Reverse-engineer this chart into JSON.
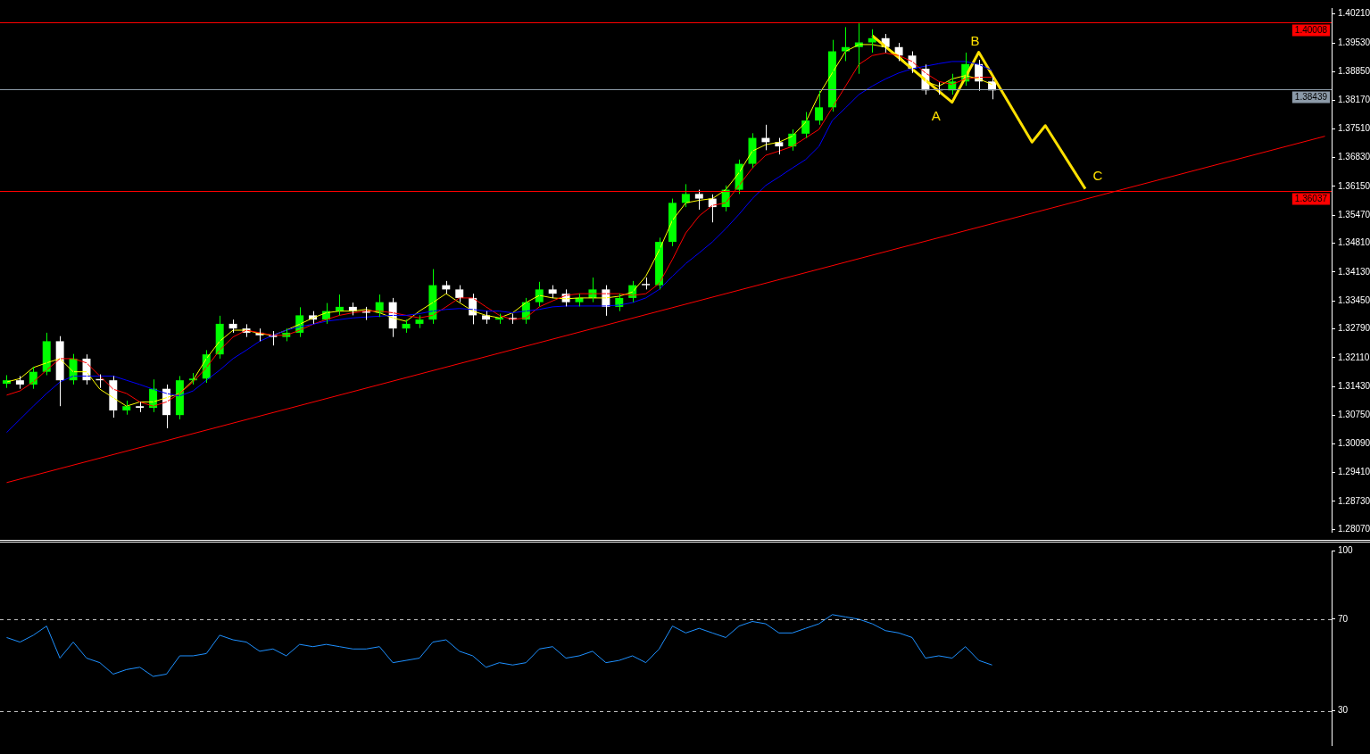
{
  "chart_data": [
    {
      "type": "candlestick",
      "tick_labels": "y",
      "colors": [
        "#00ff00",
        "#ffffff",
        "#00ff00",
        "#00ff00",
        "#ffffff",
        "#00ff00",
        "#ffffff",
        "#ffffff",
        "#ffffff",
        "#00ff00",
        "#ffffff",
        "#00ff00",
        "#ffffff",
        "#00ff00",
        "#00ff00",
        "#00ff00",
        "#00ff00",
        "#ffffff",
        "#ffffff",
        "#ffffff",
        "#ffffff",
        "#00ff00",
        "#00ff00",
        "#ffffff",
        "#00ff00",
        "#00ff00",
        "#ffffff",
        "#ffffff",
        "#00ff00",
        "#ffffff",
        "#00ff00",
        "#00ff00",
        "#00ff00",
        "#ffffff",
        "#ffffff",
        "#ffffff",
        "#ffffff",
        "#00ff00",
        "#ffffff",
        "#00ff00",
        "#00ff00",
        "#ffffff",
        "#ffffff",
        "#00ff00",
        "#00ff00",
        "#ffffff",
        "#00ff00",
        "#00ff00",
        "#ffffff",
        "#00ff00",
        "#00ff00",
        "#00ff00",
        "#ffffff",
        "#ffffff",
        "#00ff00",
        "#00ff00",
        "#00ff00",
        "#ffffff",
        "#ffffff",
        "#00ff00",
        "#00ff00",
        "#00ff00",
        "#00ff00",
        "#00ff00",
        "#00ff00",
        "#00ff00",
        "#ffffff",
        "#ffffff",
        "#ffffff",
        "#ffffff",
        "#ffffff",
        "#00ff00",
        "#00ff00",
        "#ffffff",
        "#ffffff",
        null,
        null,
        null,
        null,
        null,
        null,
        null,
        null,
        null,
        null,
        null,
        null,
        null,
        null,
        null,
        null,
        null,
        null,
        null,
        null,
        null,
        null,
        null,
        null,
        null
      ],
      "categories": [
        null,
        null,
        null,
        null,
        null,
        null,
        null,
        null,
        null,
        null,
        null,
        null,
        null,
        null,
        null,
        null,
        null,
        null,
        null,
        null,
        null,
        null,
        null,
        null,
        null,
        null,
        null,
        null,
        null,
        null,
        null,
        null,
        null,
        null,
        null,
        null,
        null,
        null,
        null,
        null,
        null,
        null,
        null,
        null,
        null,
        null,
        null,
        null,
        null,
        null,
        null,
        null,
        null,
        null,
        null,
        null,
        null,
        null,
        null,
        null,
        null,
        null,
        null,
        null,
        null,
        null,
        null,
        null,
        null,
        null,
        null,
        null,
        null,
        null,
        null,
        null,
        null,
        null,
        null,
        null,
        null,
        null,
        null,
        null,
        null,
        null,
        null,
        null,
        null,
        null,
        null,
        null,
        null,
        null,
        null,
        null,
        null,
        null,
        null,
        null
      ],
      "ohlc": [
        [
          1.315,
          1.317,
          1.314,
          1.3158
        ],
        [
          1.3158,
          1.3168,
          1.3138,
          1.3148
        ],
        [
          1.3148,
          1.319,
          1.3138,
          1.3178
        ],
        [
          1.3178,
          1.327,
          1.317,
          1.325
        ],
        [
          1.325,
          1.3262,
          1.3097,
          1.3158
        ],
        [
          1.3158,
          1.322,
          1.3148,
          1.3209
        ],
        [
          1.3209,
          1.3219,
          1.3148,
          1.3158
        ],
        [
          1.3161,
          1.3172,
          1.314,
          1.3158
        ],
        [
          1.3158,
          1.3168,
          1.307,
          1.3087
        ],
        [
          1.3087,
          1.311,
          1.3077,
          1.3097
        ],
        [
          1.3097,
          1.3107,
          1.3083,
          1.3093
        ],
        [
          1.3093,
          1.316,
          1.3083,
          1.3138
        ],
        [
          1.3138,
          1.3148,
          1.3045,
          1.3076
        ],
        [
          1.3076,
          1.3168,
          1.3066,
          1.3158
        ],
        [
          1.3158,
          1.3175,
          1.3148,
          1.3162
        ],
        [
          1.3162,
          1.3229,
          1.3152,
          1.3219
        ],
        [
          1.3219,
          1.331,
          1.3209,
          1.3291
        ],
        [
          1.3291,
          1.3301,
          1.327,
          1.328
        ],
        [
          1.328,
          1.329,
          1.326,
          1.327
        ],
        [
          1.327,
          1.328,
          1.325,
          1.3264
        ],
        [
          1.3264,
          1.3274,
          1.324,
          1.326
        ],
        [
          1.326,
          1.328,
          1.325,
          1.327
        ],
        [
          1.327,
          1.333,
          1.326,
          1.3311
        ],
        [
          1.3311,
          1.3321,
          1.3291,
          1.3301
        ],
        [
          1.3301,
          1.334,
          1.3291,
          1.3321
        ],
        [
          1.3321,
          1.336,
          1.3311,
          1.3331
        ],
        [
          1.3331,
          1.3341,
          1.3311,
          1.3321
        ],
        [
          1.3321,
          1.3331,
          1.33,
          1.3317
        ],
        [
          1.3317,
          1.336,
          1.3307,
          1.3342
        ],
        [
          1.3342,
          1.3352,
          1.326,
          1.328
        ],
        [
          1.328,
          1.3301,
          1.327,
          1.3291
        ],
        [
          1.3291,
          1.3311,
          1.3281,
          1.3301
        ],
        [
          1.3301,
          1.342,
          1.3291,
          1.3382
        ],
        [
          1.3382,
          1.3392,
          1.3362,
          1.3372
        ],
        [
          1.3372,
          1.3382,
          1.3342,
          1.3352
        ],
        [
          1.3352,
          1.3362,
          1.329,
          1.3311
        ],
        [
          1.3311,
          1.3321,
          1.3291,
          1.3301
        ],
        [
          1.3301,
          1.3315,
          1.3291,
          1.3305
        ],
        [
          1.3305,
          1.3315,
          1.3291,
          1.3301
        ],
        [
          1.3301,
          1.3352,
          1.3291,
          1.3342
        ],
        [
          1.3342,
          1.339,
          1.3332,
          1.3372
        ],
        [
          1.3372,
          1.3382,
          1.3352,
          1.3362
        ],
        [
          1.3362,
          1.3372,
          1.3332,
          1.3342
        ],
        [
          1.3342,
          1.3362,
          1.3332,
          1.3352
        ],
        [
          1.3352,
          1.34,
          1.3342,
          1.3372
        ],
        [
          1.3372,
          1.3382,
          1.331,
          1.3331
        ],
        [
          1.3331,
          1.3362,
          1.3321,
          1.3352
        ],
        [
          1.3352,
          1.3392,
          1.3342,
          1.3382
        ],
        [
          1.3385,
          1.34,
          1.3372,
          1.3382
        ],
        [
          1.3382,
          1.3494,
          1.3372,
          1.3484
        ],
        [
          1.3484,
          1.3586,
          1.3474,
          1.3576
        ],
        [
          1.3576,
          1.362,
          1.3566,
          1.3597
        ],
        [
          1.3597,
          1.3607,
          1.356,
          1.3586
        ],
        [
          1.3586,
          1.3596,
          1.353,
          1.3566
        ],
        [
          1.3566,
          1.3617,
          1.3556,
          1.3607
        ],
        [
          1.3607,
          1.3678,
          1.3597,
          1.3668
        ],
        [
          1.3668,
          1.374,
          1.3658,
          1.3729
        ],
        [
          1.3729,
          1.376,
          1.37,
          1.3719
        ],
        [
          1.3719,
          1.3729,
          1.369,
          1.3709
        ],
        [
          1.3709,
          1.3749,
          1.3699,
          1.3739
        ],
        [
          1.3739,
          1.379,
          1.3729,
          1.377
        ],
        [
          1.377,
          1.384,
          1.376,
          1.3801
        ],
        [
          1.3801,
          1.396,
          1.3791,
          1.3933
        ],
        [
          1.3933,
          1.399,
          1.391,
          1.3943
        ],
        [
          1.3943,
          1.3999,
          1.388,
          1.3954
        ],
        [
          1.3954,
          1.3985,
          1.393,
          1.3964
        ],
        [
          1.3964,
          1.3974,
          1.393,
          1.3943
        ],
        [
          1.3943,
          1.3953,
          1.391,
          1.3923
        ],
        [
          1.3923,
          1.3933,
          1.3882,
          1.3892
        ],
        [
          1.3892,
          1.3902,
          1.3831,
          1.3841
        ],
        [
          1.3844,
          1.386,
          1.3831,
          1.3841
        ],
        [
          1.3841,
          1.388,
          1.3831,
          1.3862
        ],
        [
          1.3862,
          1.393,
          1.3852,
          1.3903
        ],
        [
          1.3903,
          1.3913,
          1.384,
          1.3862
        ],
        [
          1.3862,
          1.3872,
          1.382,
          1.3841
        ],
        null,
        null,
        null,
        null,
        null,
        null,
        null,
        null,
        null,
        null,
        null,
        null,
        null,
        null,
        null,
        null,
        null,
        null,
        null,
        null,
        null,
        null,
        null,
        null,
        null
      ],
      "series": [
        {
          "type": "line",
          "color": "#0000ff",
          "values": [
            1.3035,
            1.3066,
            1.3097,
            1.3127,
            1.3154,
            1.3168,
            1.3168,
            1.3168,
            1.3168,
            1.3158,
            1.3148,
            1.3137,
            1.3127,
            1.3121,
            1.3133,
            1.3158,
            1.3182,
            1.3209,
            1.3229,
            1.325,
            1.3264,
            1.3276,
            1.3284,
            1.329,
            1.3297,
            1.3301,
            1.3305,
            1.3307,
            1.3309,
            1.3311,
            1.3311,
            1.3315,
            1.3321,
            1.3325,
            1.3327,
            1.3325,
            1.3321,
            1.3321,
            1.3317,
            1.3321,
            1.3325,
            1.3331,
            1.3333,
            1.3333,
            1.3333,
            1.3333,
            1.3335,
            1.3341,
            1.3352,
            1.3372,
            1.3403,
            1.3433,
            1.3458,
            1.3484,
            1.3515,
            1.3549,
            1.3586,
            1.3617,
            1.3637,
            1.3658,
            1.3678,
            1.3709,
            1.377,
            1.38,
            1.3831,
            1.3851,
            1.3868,
            1.3882,
            1.3892,
            1.3898,
            1.3904,
            1.3909,
            1.3909,
            1.3902,
            1.3888,
            null,
            null,
            null,
            null,
            null,
            null,
            null,
            null,
            null,
            null,
            null,
            null,
            null,
            null,
            null,
            null,
            null,
            null,
            null,
            null,
            null,
            null,
            null,
            null,
            null
          ]
        },
        {
          "type": "line",
          "color": "#ff0000",
          "values": [
            1.3123,
            1.3133,
            1.3154,
            1.3182,
            1.3209,
            1.3209,
            1.3199,
            1.3168,
            1.3137,
            1.3127,
            1.3107,
            1.3097,
            1.3107,
            1.3127,
            1.3154,
            1.3188,
            1.3229,
            1.326,
            1.3276,
            1.327,
            1.3264,
            1.3264,
            1.3276,
            1.329,
            1.3301,
            1.3311,
            1.3317,
            1.3321,
            1.3321,
            1.3317,
            1.3311,
            1.3305,
            1.3311,
            1.3331,
            1.3352,
            1.3352,
            1.3331,
            1.3311,
            1.3301,
            1.3305,
            1.3331,
            1.3345,
            1.3358,
            1.3362,
            1.3362,
            1.3362,
            1.3362,
            1.3358,
            1.3362,
            1.3386,
            1.3443,
            1.3505,
            1.3545,
            1.357,
            1.3576,
            1.3617,
            1.3658,
            1.3688,
            1.3698,
            1.3709,
            1.3729,
            1.3749,
            1.38,
            1.3851,
            1.3902,
            1.3923,
            1.3929,
            1.3923,
            1.3909,
            1.3882,
            1.3862,
            1.3855,
            1.3868,
            1.3872,
            1.3872,
            null,
            null,
            null,
            null,
            null,
            null,
            null,
            null,
            null,
            null,
            null,
            null,
            null,
            null,
            null,
            null,
            null,
            null,
            null,
            null,
            null,
            null,
            null,
            null,
            null
          ]
        },
        {
          "type": "line",
          "color": "#ffff00",
          "values": [
            1.3154,
            1.3162,
            1.3188,
            1.3199,
            1.3209,
            1.3178,
            1.3178,
            1.3137,
            1.3117,
            1.3097,
            1.3107,
            1.3107,
            1.3117,
            1.3127,
            1.3158,
            1.3209,
            1.325,
            1.3276,
            1.3276,
            1.3268,
            1.3264,
            1.3276,
            1.329,
            1.3305,
            1.3317,
            1.3321,
            1.3321,
            1.3325,
            1.3317,
            1.3305,
            1.3297,
            1.3321,
            1.3341,
            1.3362,
            1.3341,
            1.3321,
            1.3311,
            1.3305,
            1.3317,
            1.3341,
            1.3358,
            1.3352,
            1.335,
            1.3352,
            1.3352,
            1.3352,
            1.3356,
            1.3366,
            1.3403,
            1.3464,
            1.3535,
            1.3576,
            1.3582,
            1.3586,
            1.3607,
            1.3647,
            1.3698,
            1.3713,
            1.3719,
            1.3733,
            1.3766,
            1.3831,
            1.3882,
            1.3933,
            1.3949,
            1.3949,
            1.3943,
            1.3923,
            1.3892,
            1.3862,
            1.3851,
            1.3868,
            1.3876,
            1.3868,
            1.3855,
            null,
            null,
            null,
            null,
            null,
            null,
            null,
            null,
            null,
            null,
            null,
            null,
            null,
            null,
            null,
            null,
            null,
            null,
            null,
            null,
            null,
            null,
            null,
            null,
            null
          ]
        },
        {
          "type": "line",
          "color": "#ff0000",
          "values": [
            1.2917,
            null,
            null,
            null,
            null,
            null,
            null,
            null,
            null,
            null,
            null,
            null,
            null,
            null,
            null,
            null,
            null,
            null,
            null,
            null,
            null,
            null,
            null,
            null,
            null,
            null,
            null,
            null,
            null,
            null,
            null,
            null,
            null,
            null,
            null,
            null,
            null,
            null,
            null,
            null,
            null,
            null,
            null,
            null,
            null,
            null,
            null,
            null,
            null,
            null,
            null,
            null,
            null,
            null,
            null,
            null,
            null,
            null,
            null,
            null,
            null,
            null,
            null,
            null,
            null,
            null,
            null,
            null,
            null,
            null,
            null,
            null,
            null,
            null,
            null,
            null,
            null,
            null,
            null,
            null,
            null,
            null,
            null,
            null,
            null,
            null,
            null,
            null,
            null,
            null,
            null,
            null,
            null,
            null,
            null,
            null,
            null,
            null,
            null,
            1.3733
          ]
        },
        {
          "type": "line",
          "color": "#ffe000",
          "values": [
            null,
            null,
            null,
            null,
            null,
            null,
            null,
            null,
            null,
            null,
            null,
            null,
            null,
            null,
            null,
            null,
            null,
            null,
            null,
            null,
            null,
            null,
            null,
            null,
            null,
            null,
            null,
            null,
            null,
            null,
            null,
            null,
            null,
            null,
            null,
            null,
            null,
            null,
            null,
            null,
            null,
            null,
            null,
            null,
            null,
            null,
            null,
            null,
            null,
            null,
            null,
            null,
            null,
            null,
            null,
            null,
            null,
            null,
            null,
            null,
            null,
            null,
            null,
            null,
            null,
            1.397,
            null,
            null,
            null,
            null,
            null,
            1.3813,
            null,
            1.3931,
            null,
            null,
            null,
            1.3719,
            1.3758,
            null,
            null,
            1.3609,
            null,
            null,
            null,
            null,
            null,
            null,
            null,
            null,
            null,
            null,
            null,
            null,
            null,
            null,
            null,
            null,
            null,
            null
          ]
        }
      ],
      "ylim": [
        1.2801,
        1.4035
      ],
      "yticks": [
        {
          "value": 1.2807,
          "label": "1.28070"
        },
        {
          "value": 1.2873,
          "label": "1.28730"
        },
        {
          "value": 1.2941,
          "label": "1.29410"
        },
        {
          "value": 1.3009,
          "label": "1.30090"
        },
        {
          "value": 1.3075,
          "label": "1.30750"
        },
        {
          "value": 1.3143,
          "label": "1.31430"
        },
        {
          "value": 1.3211,
          "label": "1.32110"
        },
        {
          "value": 1.3279,
          "label": "1.32790"
        },
        {
          "value": 1.3345,
          "label": "1.33450"
        },
        {
          "value": 1.3413,
          "label": "1.34130"
        },
        {
          "value": 1.3481,
          "label": "1.34810"
        },
        {
          "value": 1.3547,
          "label": "1.35470"
        },
        {
          "value": 1.3615,
          "label": "1.36150"
        },
        {
          "value": 1.3683,
          "label": "1.36830"
        },
        {
          "value": 1.3751,
          "label": "1.37510"
        },
        {
          "value": 1.3817,
          "label": "1.38170"
        },
        {
          "value": 1.3885,
          "label": "1.38850"
        },
        {
          "value": 1.3953,
          "label": "1.39530"
        },
        {
          "value": 1.4021,
          "label": "1.40210"
        }
      ],
      "ref_lines": [
        {
          "axis": "y",
          "value": 1.40008,
          "label": "1.40008",
          "color": "#ff0000"
        },
        {
          "axis": "y",
          "value": 1.38439,
          "label": "1.38439",
          "color": "#8c9aa8"
        },
        {
          "axis": "y",
          "value": 1.36037,
          "label": "1.36037",
          "color": "#ff0000"
        }
      ],
      "annotations": [
        "A",
        "B",
        "C"
      ]
    },
    {
      "type": "line",
      "tick_labels": "y",
      "categories": [
        null,
        null,
        null,
        null,
        null,
        null,
        null,
        null,
        null,
        null,
        null,
        null,
        null,
        null,
        null,
        null,
        null,
        null,
        null,
        null,
        null,
        null,
        null,
        null,
        null,
        null,
        null,
        null,
        null,
        null,
        null,
        null,
        null,
        null,
        null,
        null,
        null,
        null,
        null,
        null,
        null,
        null,
        null,
        null,
        null,
        null,
        null,
        null,
        null,
        null,
        null,
        null,
        null,
        null,
        null,
        null,
        null,
        null,
        null,
        null,
        null,
        null,
        null,
        null,
        null,
        null,
        null,
        null,
        null,
        null,
        null,
        null,
        null,
        null,
        null,
        null,
        null,
        null,
        null,
        null,
        null,
        null,
        null,
        null,
        null,
        null,
        null,
        null,
        null,
        null,
        null,
        null,
        null,
        null,
        null,
        null,
        null,
        null,
        null,
        null
      ],
      "series": [
        {
          "type": "line",
          "color": "#1e90ff",
          "values": [
            62,
            60,
            63,
            67,
            53,
            60,
            53,
            51,
            46,
            48,
            49,
            45,
            46,
            54,
            54,
            55,
            63,
            61,
            60,
            56,
            57,
            54,
            59,
            58,
            59,
            58,
            57,
            57,
            58,
            51,
            52,
            53,
            60,
            61,
            56,
            54,
            49,
            51,
            50,
            51,
            57,
            58,
            53,
            54,
            56,
            51,
            52,
            54,
            51,
            57,
            67,
            64,
            66,
            64,
            62,
            67,
            69,
            68,
            64,
            64,
            66,
            68,
            72,
            71,
            70,
            68,
            65,
            64,
            62,
            53,
            54,
            53,
            58,
            52,
            50,
            null,
            null,
            null,
            null,
            null,
            null,
            null,
            null,
            null,
            null,
            null,
            null,
            null,
            null,
            null,
            null,
            null,
            null,
            null,
            null,
            null,
            null,
            null,
            null,
            null
          ]
        }
      ],
      "ylim": [
        15,
        100
      ],
      "yticks": [
        30,
        70,
        100
      ],
      "ref_lines": [
        {
          "axis": "y",
          "value": 70,
          "color": "#c0c0c0",
          "line_style": "dashed"
        },
        {
          "axis": "y",
          "value": 30,
          "color": "#c0c0c0",
          "line_style": "dashed"
        }
      ]
    }
  ]
}
